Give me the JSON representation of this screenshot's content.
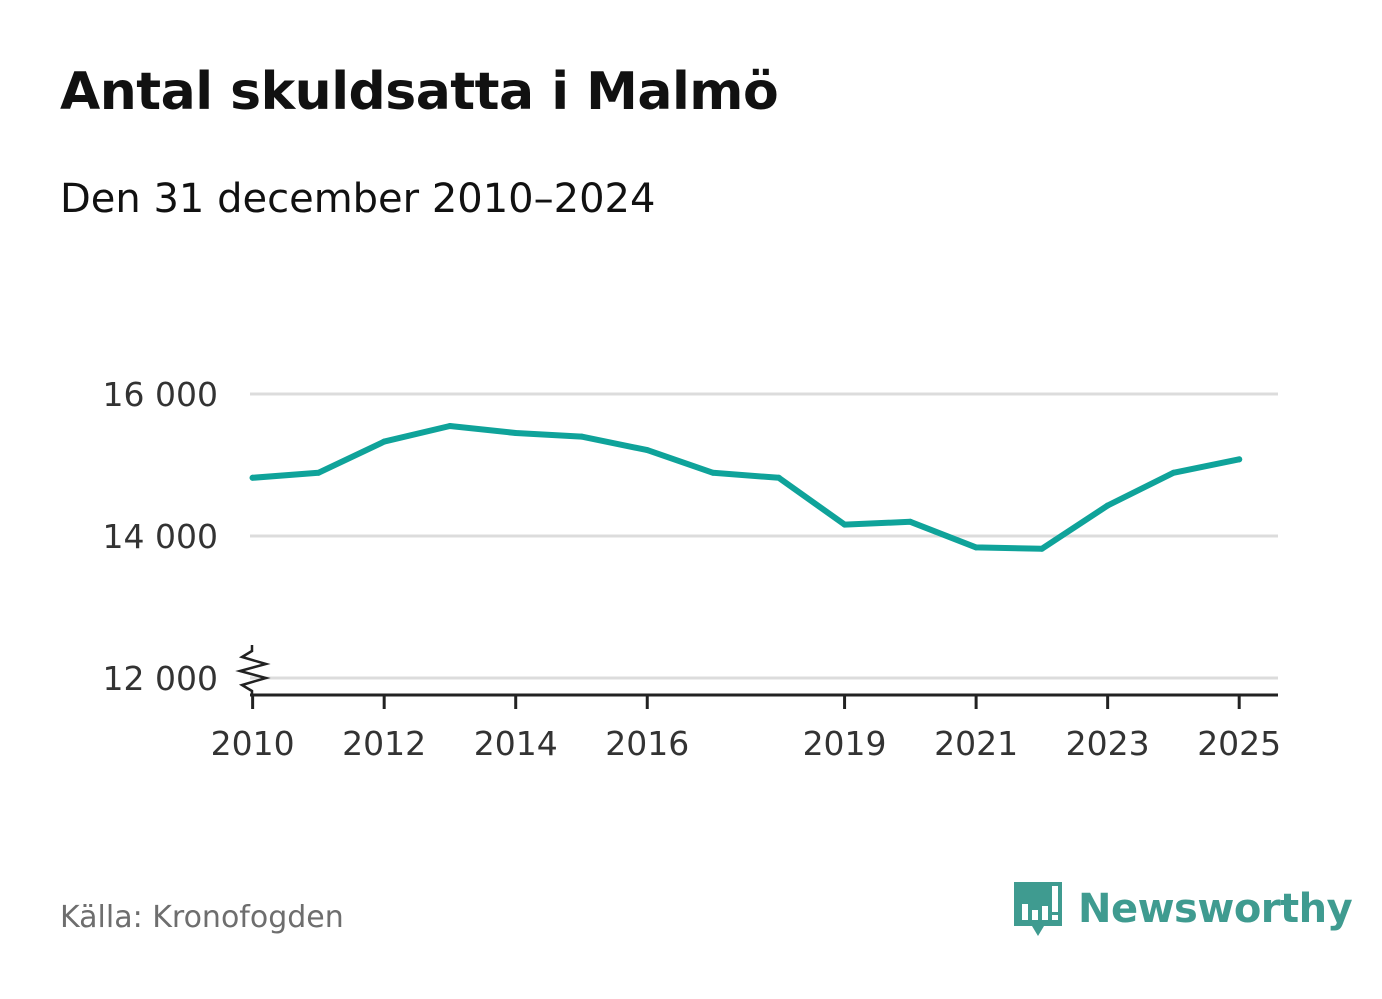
{
  "header": {
    "title": "Antal skuldsatta i Malmö",
    "subtitle": "Den 31 december 2010–2024"
  },
  "footer": {
    "source": "Källa: Kronofogden",
    "brand": "Newsworthy",
    "brand_color": "#3f9b90"
  },
  "chart_data": {
    "type": "line",
    "title": "Antal skuldsatta i Malmö",
    "subtitle": "Den 31 december 2010–2024",
    "xlabel": "",
    "ylabel": "",
    "x_ticks": [
      "2010",
      "2012",
      "2014",
      "2016",
      "2019",
      "2021",
      "2023",
      "2025"
    ],
    "y_ticks": [
      {
        "value": 12000,
        "label": "12 000"
      },
      {
        "value": 14000,
        "label": "14 000"
      },
      {
        "value": 16000,
        "label": "16 000"
      }
    ],
    "xlim": [
      2009.96,
      2025.59
    ],
    "ylim": [
      12000,
      16000
    ],
    "axis_break": true,
    "grid": true,
    "line_color": "#0fa39a",
    "series": [
      {
        "name": "Antal skuldsatta",
        "x": [
          2010,
          2011,
          2012,
          2013,
          2014,
          2015,
          2016,
          2017,
          2018,
          2019,
          2020,
          2021,
          2022,
          2023,
          2024,
          2025
        ],
        "values": [
          14820,
          14890,
          15330,
          15550,
          15450,
          15400,
          15210,
          14890,
          14820,
          14160,
          14200,
          13840,
          13820,
          14430,
          14890,
          15080
        ]
      }
    ]
  }
}
